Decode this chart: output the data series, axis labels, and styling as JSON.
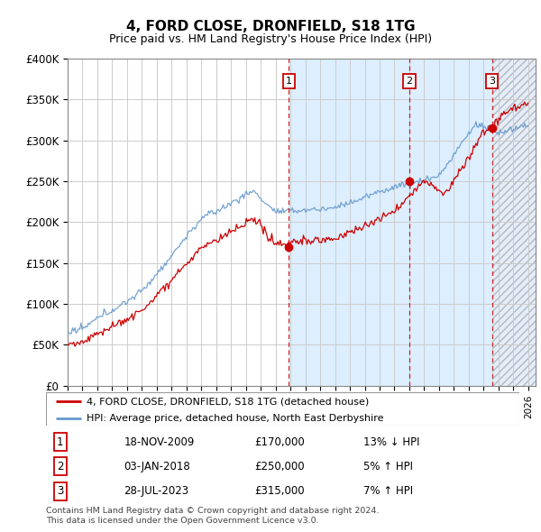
{
  "title": "4, FORD CLOSE, DRONFIELD, S18 1TG",
  "subtitle": "Price paid vs. HM Land Registry's House Price Index (HPI)",
  "ylabel_ticks": [
    "£0",
    "£50K",
    "£100K",
    "£150K",
    "£200K",
    "£250K",
    "£300K",
    "£350K",
    "£400K"
  ],
  "ytick_values": [
    0,
    50000,
    100000,
    150000,
    200000,
    250000,
    300000,
    350000,
    400000
  ],
  "ylim": [
    0,
    400000
  ],
  "xlim_start": 1995.0,
  "xlim_end": 2026.5,
  "sale_dates": [
    2009.88,
    2018.01,
    2023.57
  ],
  "sale_prices": [
    170000,
    250000,
    315000
  ],
  "sale_labels": [
    "1",
    "2",
    "3"
  ],
  "sale_table": [
    {
      "num": "1",
      "date": "18-NOV-2009",
      "price": "£170,000",
      "pct": "13%",
      "dir": "↓",
      "idx": "HPI"
    },
    {
      "num": "2",
      "date": "03-JAN-2018",
      "price": "£250,000",
      "pct": "5%",
      "dir": "↑",
      "idx": "HPI"
    },
    {
      "num": "3",
      "date": "28-JUL-2023",
      "price": "£315,000",
      "pct": "7%",
      "dir": "↑",
      "idx": "HPI"
    }
  ],
  "legend_line1": "4, FORD CLOSE, DRONFIELD, S18 1TG (detached house)",
  "legend_line2": "HPI: Average price, detached house, North East Derbyshire",
  "footer1": "Contains HM Land Registry data © Crown copyright and database right 2024.",
  "footer2": "This data is licensed under the Open Government Licence v3.0.",
  "hpi_color": "#6699cc",
  "price_color": "#cc0000",
  "dashed_line_color": "#cc0000",
  "background_color": "#ffffff",
  "grid_color": "#cccccc",
  "shade_between_color": "#ddeeff",
  "hatch_color": "#ccccdd"
}
